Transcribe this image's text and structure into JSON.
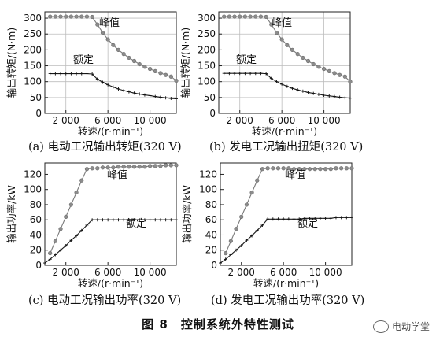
{
  "chart_data": [
    {
      "type": "line",
      "caption": "(a) 电动工况输出转矩(320 V)",
      "xlabel": "转速/(r·min⁻¹)",
      "ylabel": "输出转矩/(N·m)",
      "xlim": [
        0,
        12500
      ],
      "ylim": [
        0,
        320
      ],
      "xticks": [
        2000,
        6000,
        10000
      ],
      "xtick_labels": [
        "2 000",
        "6 000",
        "10 000"
      ],
      "yticks": [
        0,
        50,
        100,
        150,
        200,
        250,
        300
      ],
      "grid": true,
      "series": [
        {
          "name": "峰值",
          "marker": "circle",
          "x": [
            500,
            1000,
            1500,
            2000,
            2500,
            3000,
            3500,
            4000,
            4500,
            5000,
            5500,
            6000,
            6500,
            7000,
            7500,
            8000,
            8500,
            9000,
            9500,
            10000,
            10500,
            11000,
            11500,
            12000,
            12500
          ],
          "y": [
            305,
            305,
            305,
            305,
            305,
            305,
            305,
            305,
            304,
            280,
            254,
            233,
            215,
            200,
            187,
            175,
            165,
            155,
            147,
            140,
            133,
            127,
            121,
            116,
            103
          ]
        },
        {
          "name": "额定",
          "marker": "plus",
          "x": [
            500,
            1000,
            1500,
            2000,
            2500,
            3000,
            3500,
            4000,
            4500,
            5000,
            5500,
            6000,
            6500,
            7000,
            7500,
            8000,
            8500,
            9000,
            9500,
            10000,
            10500,
            11000,
            11500,
            12000,
            12500
          ],
          "y": [
            125,
            125,
            125,
            125,
            125,
            125,
            125,
            125,
            124,
            108,
            98,
            90,
            83,
            77,
            72,
            68,
            64,
            61,
            58,
            56,
            53,
            51,
            49,
            47,
            46
          ]
        }
      ]
    },
    {
      "type": "line",
      "caption": "(b) 发电工况输出扭矩(320 V)",
      "xlabel": "转速/(r·min⁻¹)",
      "ylabel": "输出转矩/(N·m)",
      "xlim": [
        0,
        12500
      ],
      "ylim": [
        0,
        320
      ],
      "xticks": [
        2000,
        6000,
        10000
      ],
      "xtick_labels": [
        "2 000",
        "6 000",
        "10 000"
      ],
      "yticks": [
        0,
        50,
        100,
        150,
        200,
        250,
        300
      ],
      "grid": true,
      "series": [
        {
          "name": "峰值",
          "marker": "circle",
          "x": [
            500,
            1000,
            1500,
            2000,
            2500,
            3000,
            3500,
            4000,
            4500,
            5000,
            5500,
            6000,
            6500,
            7000,
            7500,
            8000,
            8500,
            9000,
            9500,
            10000,
            10500,
            11000,
            11500,
            12000,
            12500
          ],
          "y": [
            305,
            305,
            305,
            305,
            305,
            305,
            305,
            305,
            304,
            280,
            254,
            233,
            215,
            200,
            187,
            175,
            165,
            155,
            147,
            140,
            133,
            127,
            121,
            116,
            100
          ]
        },
        {
          "name": "额定",
          "marker": "plus",
          "x": [
            500,
            1000,
            1500,
            2000,
            2500,
            3000,
            3500,
            4000,
            4500,
            5000,
            5500,
            6000,
            6500,
            7000,
            7500,
            8000,
            8500,
            9000,
            9500,
            10000,
            10500,
            11000,
            11500,
            12000,
            12500
          ],
          "y": [
            126,
            126,
            126,
            126,
            126,
            126,
            126,
            126,
            125,
            110,
            100,
            92,
            85,
            79,
            74,
            70,
            66,
            63,
            60,
            57,
            55,
            53,
            51,
            49,
            48
          ]
        }
      ]
    },
    {
      "type": "line",
      "caption": "(c) 电动工况输出功率(320 V)",
      "xlabel": "转速/(r·min⁻¹)",
      "ylabel": "输出功率/kW",
      "xlim": [
        0,
        12500
      ],
      "ylim": [
        0,
        135
      ],
      "xticks": [
        2000,
        6000,
        10000
      ],
      "xtick_labels": [
        "2 000",
        "6 000",
        "10 000"
      ],
      "yticks": [
        0,
        20,
        40,
        60,
        80,
        100,
        120
      ],
      "grid": false,
      "series": [
        {
          "name": "峰值",
          "marker": "circle",
          "x": [
            500,
            1000,
            1500,
            2000,
            2500,
            3000,
            3500,
            4000,
            4500,
            5000,
            5500,
            6000,
            6500,
            7000,
            7500,
            8000,
            8500,
            9000,
            9500,
            10000,
            10500,
            11000,
            11500,
            12000,
            12500
          ],
          "y": [
            16,
            32,
            48,
            64,
            80,
            96,
            112,
            127,
            128,
            128,
            129,
            129,
            129,
            130,
            130,
            130,
            130,
            130,
            130,
            131,
            131,
            131,
            132,
            132,
            132
          ]
        },
        {
          "name": "额定",
          "marker": "plus",
          "x": [
            0,
            500,
            1000,
            1500,
            2000,
            2500,
            3000,
            3500,
            4000,
            4500,
            5000,
            5500,
            6000,
            6500,
            7000,
            7500,
            8000,
            8500,
            9000,
            9500,
            10000,
            10500,
            11000,
            11500,
            12000,
            12500
          ],
          "y": [
            3,
            8,
            14,
            20,
            26,
            33,
            39,
            46,
            53,
            60,
            60,
            60,
            60,
            60,
            60,
            60,
            60,
            60,
            60,
            60,
            60,
            60,
            60,
            60,
            60,
            60
          ]
        }
      ]
    },
    {
      "type": "line",
      "caption": "(d) 发电工况输出功率(320 V)",
      "xlabel": "转速/(r·min⁻¹)",
      "ylabel": "输出功率/kW",
      "xlim": [
        0,
        12500
      ],
      "ylim": [
        0,
        135
      ],
      "xticks": [
        2000,
        6000,
        10000
      ],
      "xtick_labels": [
        "2 000",
        "6 000",
        "10 000"
      ],
      "yticks": [
        0,
        20,
        40,
        60,
        80,
        100,
        120
      ],
      "grid": false,
      "series": [
        {
          "name": "峰值",
          "marker": "circle",
          "x": [
            500,
            1000,
            1500,
            2000,
            2500,
            3000,
            3500,
            4000,
            4500,
            5000,
            5500,
            6000,
            6500,
            7000,
            7500,
            8000,
            8500,
            9000,
            9500,
            10000,
            10500,
            11000,
            11500,
            12000,
            12500
          ],
          "y": [
            16,
            32,
            48,
            64,
            80,
            96,
            112,
            127,
            128,
            128,
            128,
            128,
            128,
            127,
            127,
            127,
            127,
            127,
            127,
            127,
            127,
            128,
            128,
            128,
            128
          ]
        },
        {
          "name": "额定",
          "marker": "plus",
          "x": [
            0,
            500,
            1000,
            1500,
            2000,
            2500,
            3000,
            3500,
            4000,
            4500,
            5000,
            5500,
            6000,
            6500,
            7000,
            7500,
            8000,
            8500,
            9000,
            9500,
            10000,
            10500,
            11000,
            11500,
            12000,
            12500
          ],
          "y": [
            3,
            8,
            14,
            20,
            26,
            33,
            39,
            46,
            53,
            61,
            61,
            61,
            61,
            61,
            61,
            61,
            62,
            62,
            62,
            62,
            62,
            62,
            63,
            63,
            63,
            63
          ]
        }
      ]
    }
  ],
  "figure_title": "图 8　控制系统外特性测试",
  "watermark": "电动学堂"
}
